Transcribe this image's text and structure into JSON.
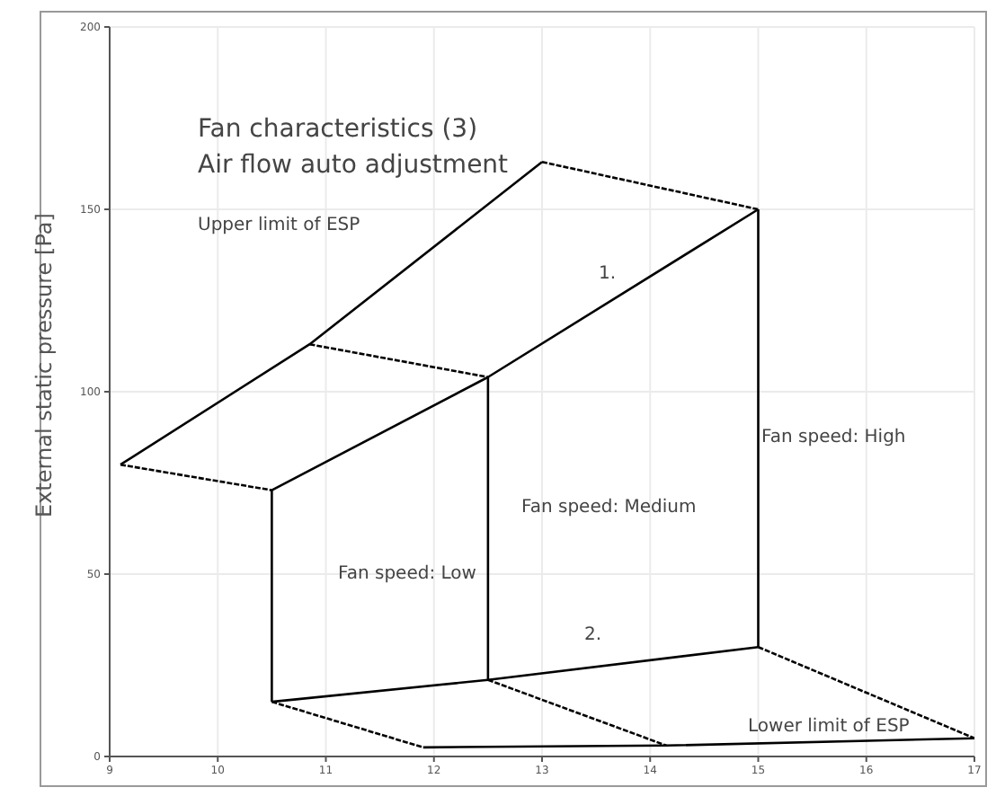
{
  "chart_data": {
    "type": "line",
    "title": "Fan characteristics (3)",
    "subtitle": "Air flow auto adjustment",
    "ylabel": "External static pressure [Pa]",
    "xlim": [
      9,
      17
    ],
    "xticks": [
      9,
      10,
      11,
      12,
      13,
      14,
      15,
      16,
      17
    ],
    "ylim": [
      0,
      200
    ],
    "yticks": [
      0,
      50,
      100,
      150,
      200
    ],
    "grid": true,
    "marker": "none",
    "line_style": "solid",
    "series": [
      {
        "color": "#000000",
        "x": [
          9.1,
          10.85,
          13
        ],
        "values": [
          80,
          113,
          163
        ]
      },
      {
        "color": "#000000",
        "x": [
          10.5,
          12.5,
          15
        ],
        "values": [
          73,
          104,
          150
        ]
      },
      {
        "color": "#000000",
        "x": [
          10.5,
          12.5,
          15
        ],
        "values": [
          15,
          21,
          30
        ]
      },
      {
        "color": "#000000",
        "x": [
          11.9,
          14.15,
          17
        ],
        "values": [
          2.5,
          3,
          5
        ]
      },
      {
        "color": "#000000",
        "x": [
          9.1,
          10.5
        ],
        "values": [
          80,
          73
        ],
        "line_style": "dashed"
      },
      {
        "color": "#000000",
        "x": [
          10.85,
          12.5
        ],
        "values": [
          113,
          104
        ],
        "line_style": "dashed"
      },
      {
        "color": "#000000",
        "x": [
          13,
          15
        ],
        "values": [
          163,
          150
        ],
        "line_style": "dashed"
      },
      {
        "color": "#000000",
        "x": [
          10.5,
          10.5
        ],
        "values": [
          73,
          15
        ]
      },
      {
        "color": "#000000",
        "x": [
          12.5,
          12.5
        ],
        "values": [
          104,
          21
        ]
      },
      {
        "color": "#000000",
        "x": [
          15,
          15
        ],
        "values": [
          150,
          30
        ]
      },
      {
        "color": "#000000",
        "x": [
          10.5,
          11.9
        ],
        "values": [
          15,
          2.5
        ],
        "line_style": "dashed"
      },
      {
        "color": "#000000",
        "x": [
          12.5,
          14.15
        ],
        "values": [
          21,
          3
        ],
        "line_style": "dashed"
      },
      {
        "color": "#000000",
        "x": [
          15,
          17
        ],
        "values": [
          30,
          5
        ],
        "line_style": "dashed"
      }
    ],
    "annotations": [
      "Upper limit of ESP",
      "1.",
      {
        "text": "Fan speed: High",
        "x": 15.03,
        "y": 88
      },
      "Fan speed: Medium",
      "Fan speed: Low",
      "2.",
      "Lower limit of ESP"
    ]
  }
}
